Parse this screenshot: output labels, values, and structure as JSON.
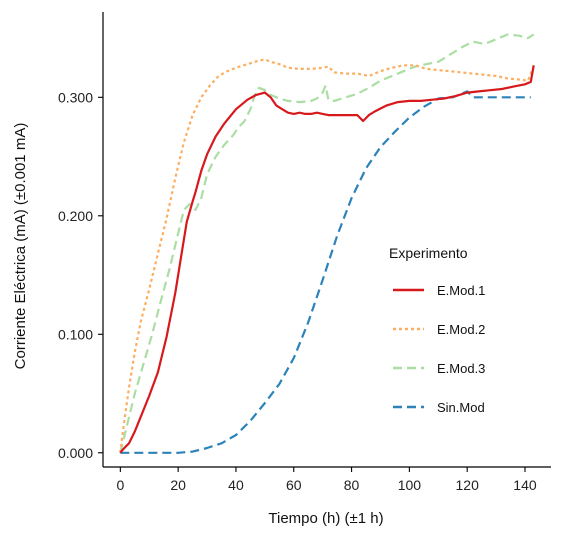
{
  "chart_data": {
    "type": "line",
    "xlabel": "Tiempo (h) (±1 h)",
    "ylabel": "Corriente Eléctrica (mA) (±0.001 mA)",
    "xlim": [
      -6,
      149
    ],
    "ylim": [
      -0.012,
      0.372
    ],
    "x_ticks": [
      0,
      20,
      40,
      60,
      80,
      100,
      120,
      140
    ],
    "x_tick_labels": [
      "0",
      "20",
      "40",
      "60",
      "80",
      "100",
      "120",
      "140"
    ],
    "y_ticks": [
      0,
      0.1,
      0.2,
      0.3
    ],
    "y_tick_labels": [
      "0.000",
      "0.100",
      "0.200",
      "0.300"
    ],
    "grid": false,
    "legend": {
      "title": "Experimento",
      "placement": "right-center"
    },
    "series": [
      {
        "name": "E.Mod.1",
        "color": "#d7191c",
        "dash": "solid",
        "x": [
          0,
          1,
          3,
          5,
          7,
          10,
          13,
          16,
          19,
          21,
          23,
          25,
          26,
          28,
          30,
          33,
          36,
          40,
          44,
          47,
          50,
          52,
          54,
          56,
          58,
          60,
          62,
          64,
          66,
          68,
          70,
          72,
          75,
          78,
          82,
          84,
          86,
          88,
          92,
          96,
          100,
          104,
          108,
          112,
          116,
          120,
          124,
          128,
          132,
          136,
          140,
          142,
          143
        ],
        "y": [
          0.0,
          0.003,
          0.008,
          0.018,
          0.03,
          0.048,
          0.068,
          0.098,
          0.135,
          0.165,
          0.195,
          0.212,
          0.22,
          0.238,
          0.252,
          0.267,
          0.278,
          0.29,
          0.298,
          0.302,
          0.304,
          0.3,
          0.293,
          0.29,
          0.287,
          0.286,
          0.287,
          0.286,
          0.286,
          0.287,
          0.286,
          0.285,
          0.285,
          0.285,
          0.285,
          0.28,
          0.285,
          0.288,
          0.293,
          0.296,
          0.297,
          0.297,
          0.298,
          0.299,
          0.301,
          0.304,
          0.305,
          0.306,
          0.307,
          0.309,
          0.311,
          0.313,
          0.327
        ]
      },
      {
        "name": "E.Mod.2",
        "color": "#fdae61",
        "dash": "dotted",
        "x": [
          0,
          1,
          3,
          5,
          7,
          10,
          13,
          16,
          19,
          22,
          25,
          28,
          31,
          34,
          37,
          40,
          44,
          48,
          50,
          52,
          55,
          58,
          62,
          66,
          70,
          72,
          74,
          78,
          82,
          86,
          90,
          94,
          98,
          102,
          106,
          110,
          114,
          118,
          122,
          126,
          130,
          134,
          138,
          141,
          143
        ],
        "y": [
          0.0,
          0.02,
          0.055,
          0.085,
          0.11,
          0.138,
          0.168,
          0.198,
          0.232,
          0.262,
          0.285,
          0.3,
          0.31,
          0.318,
          0.322,
          0.325,
          0.328,
          0.331,
          0.332,
          0.33,
          0.328,
          0.325,
          0.324,
          0.324,
          0.325,
          0.326,
          0.321,
          0.32,
          0.32,
          0.318,
          0.322,
          0.325,
          0.327,
          0.327,
          0.324,
          0.323,
          0.322,
          0.321,
          0.32,
          0.319,
          0.318,
          0.316,
          0.315,
          0.314,
          0.326
        ]
      },
      {
        "name": "E.Mod.3",
        "color": "#abdda4",
        "dash": "dashed",
        "x": [
          0,
          1,
          3,
          5,
          8,
          11,
          14,
          17,
          20,
          22,
          24,
          26,
          28,
          30,
          33,
          36,
          39,
          41,
          43,
          44,
          45,
          46,
          47,
          48,
          50,
          52,
          55,
          58,
          62,
          66,
          68,
          70,
          71,
          72,
          74,
          78,
          82,
          86,
          90,
          94,
          98,
          102,
          106,
          110,
          114,
          118,
          122,
          126,
          130,
          134,
          138,
          141,
          143
        ],
        "y": [
          0.0,
          0.01,
          0.03,
          0.05,
          0.075,
          0.1,
          0.128,
          0.155,
          0.185,
          0.205,
          0.21,
          0.205,
          0.215,
          0.235,
          0.25,
          0.26,
          0.268,
          0.275,
          0.28,
          0.285,
          0.29,
          0.298,
          0.305,
          0.308,
          0.306,
          0.302,
          0.299,
          0.297,
          0.296,
          0.297,
          0.299,
          0.304,
          0.31,
          0.298,
          0.297,
          0.3,
          0.303,
          0.308,
          0.314,
          0.318,
          0.322,
          0.326,
          0.328,
          0.33,
          0.336,
          0.342,
          0.347,
          0.345,
          0.349,
          0.353,
          0.352,
          0.35,
          0.353
        ]
      },
      {
        "name": "Sin.Mod",
        "color": "#2b83ba",
        "dash": "dashed",
        "x": [
          0,
          5,
          10,
          15,
          20,
          25,
          30,
          35,
          40,
          45,
          50,
          55,
          60,
          65,
          70,
          75,
          80,
          85,
          90,
          95,
          100,
          105,
          110,
          115,
          120,
          122,
          124,
          130,
          135,
          140,
          142
        ],
        "y": [
          0.0,
          0.0,
          0.0,
          0.0,
          0.0,
          0.001,
          0.004,
          0.008,
          0.015,
          0.027,
          0.042,
          0.058,
          0.08,
          0.11,
          0.146,
          0.183,
          0.215,
          0.24,
          0.258,
          0.271,
          0.283,
          0.292,
          0.299,
          0.3,
          0.305,
          0.3,
          0.3,
          0.3,
          0.3,
          0.3,
          0.3
        ]
      }
    ]
  }
}
